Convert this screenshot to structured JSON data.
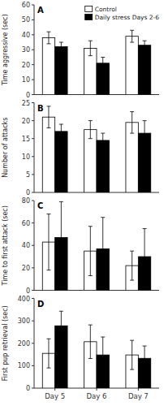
{
  "chart_data": [
    {
      "type": "bar",
      "annotations": [
        "A"
      ],
      "ylabel": "Time aggressive (sec)",
      "categories": [
        "Day 5",
        "Day 6",
        "Day 7"
      ],
      "series": [
        {
          "name": "Control",
          "color": "#ffffff",
          "values": [
            38,
            31,
            39
          ],
          "errors": [
            4,
            5,
            4
          ]
        },
        {
          "name": "Daily stress Days 2-6",
          "color": "#000000",
          "values": [
            32,
            21,
            33
          ],
          "errors": [
            3,
            4,
            3
          ]
        }
      ],
      "ylim": [
        0,
        60
      ],
      "yticks": [
        0,
        10,
        20,
        30,
        40,
        50,
        60
      ],
      "legend": "upper right",
      "tick_labels": "y"
    },
    {
      "type": "bar",
      "annotations": [
        "B"
      ],
      "ylabel": "Number of attacks",
      "categories": [
        "Day 5",
        "Day 6",
        "Day 7"
      ],
      "series": [
        {
          "color": "#ffffff",
          "values": [
            21,
            17.5,
            19.5
          ],
          "errors": [
            3,
            2.5,
            3
          ]
        },
        {
          "color": "#000000",
          "values": [
            17,
            14.5,
            16.5
          ],
          "errors": [
            2,
            2,
            3.5
          ]
        }
      ],
      "ylim": [
        0,
        25
      ],
      "yticks": [
        0,
        5,
        10,
        15,
        20,
        25
      ],
      "tick_labels": "y"
    },
    {
      "type": "bar",
      "annotations": [
        "C"
      ],
      "ylabel": "Time to first attack (sec)",
      "categories": [
        "Day 5",
        "Day 6",
        "Day 7"
      ],
      "series": [
        {
          "color": "#ffffff",
          "values": [
            43,
            35,
            22
          ],
          "errors": [
            25,
            22,
            13
          ]
        },
        {
          "color": "#000000",
          "values": [
            47,
            37,
            30
          ],
          "errors": [
            32,
            28,
            25
          ]
        }
      ],
      "ylim": [
        0,
        80
      ],
      "yticks": [
        0,
        20,
        40,
        60,
        80
      ],
      "tick_labels": "y"
    },
    {
      "type": "bar",
      "annotations": [
        "D"
      ],
      "ylabel": "First pup retrieval (sec)",
      "categories": [
        "Day 5",
        "Day 6",
        "Day 7"
      ],
      "series": [
        {
          "color": "#ffffff",
          "values": [
            155,
            207,
            148
          ],
          "errors": [
            65,
            75,
            65
          ]
        },
        {
          "color": "#000000",
          "values": [
            278,
            148,
            133
          ],
          "errors": [
            65,
            80,
            55
          ]
        }
      ],
      "ylim": [
        0,
        400
      ],
      "yticks": [
        0,
        100,
        200,
        300,
        400
      ]
    }
  ]
}
